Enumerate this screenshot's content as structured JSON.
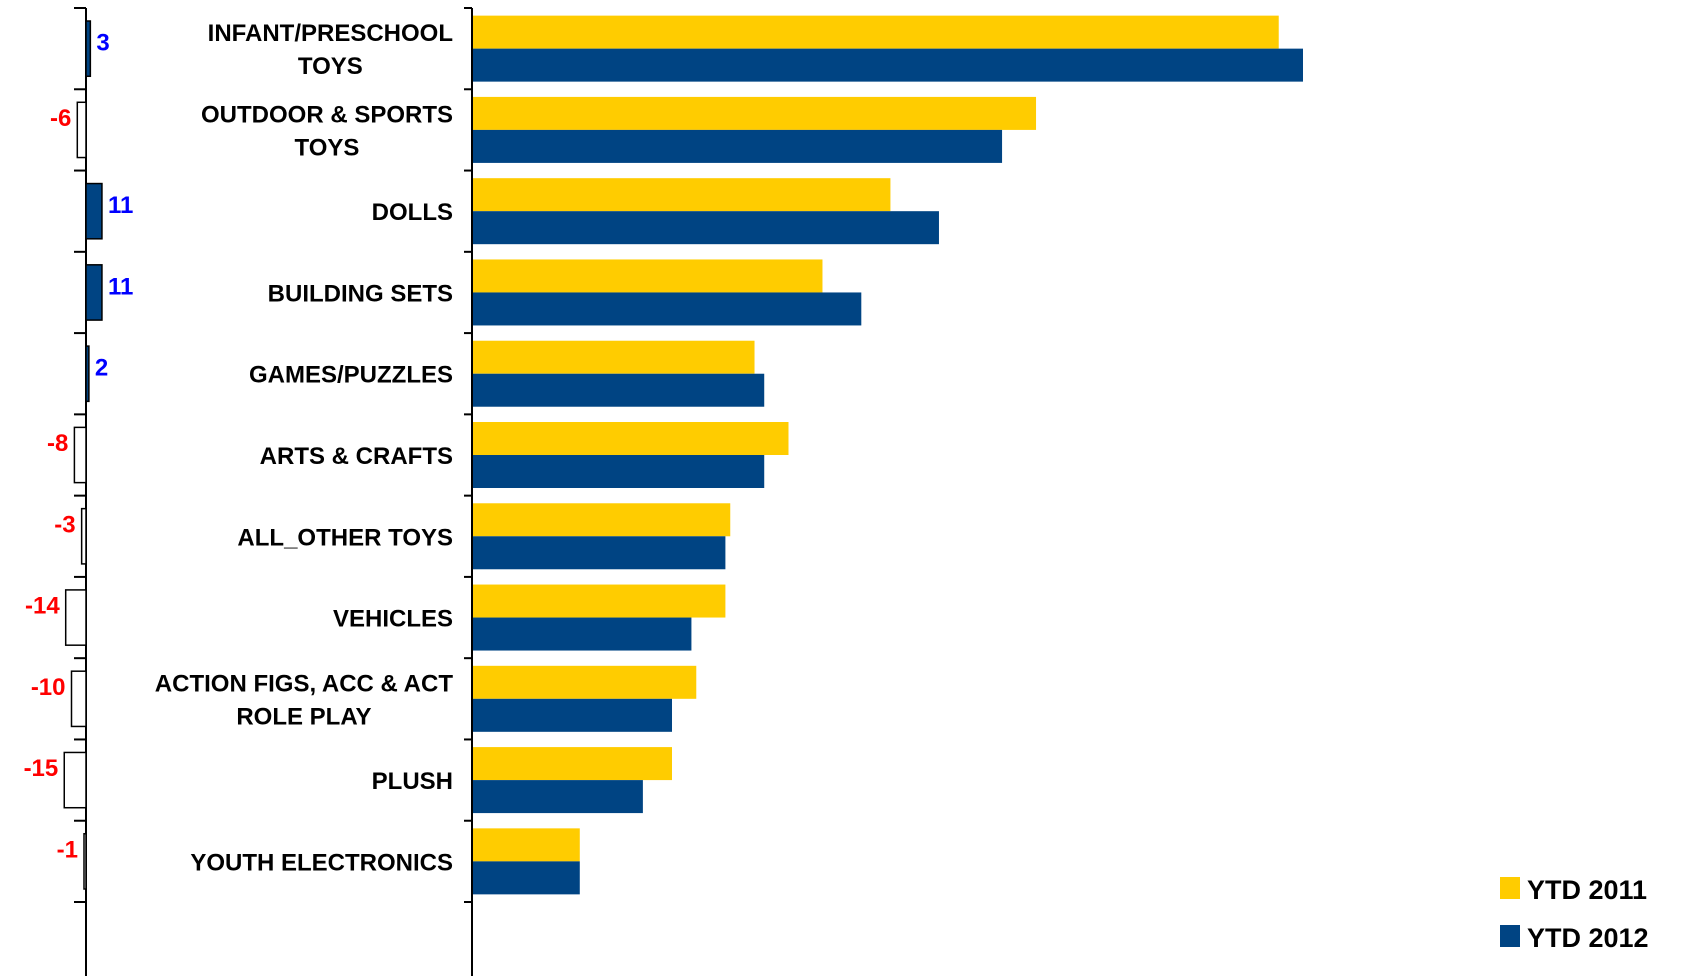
{
  "chart_data": {
    "type": "bar",
    "orientation": "horizontal",
    "categories": [
      [
        "INFANT/PRESCHOOL",
        "TOYS"
      ],
      [
        "OUTDOOR & SPORTS",
        "TOYS"
      ],
      [
        "DOLLS"
      ],
      [
        "BUILDING SETS"
      ],
      [
        "GAMES/PUZZLES"
      ],
      [
        "ARTS & CRAFTS"
      ],
      [
        "ALL_OTHER TOYS"
      ],
      [
        "VEHICLES"
      ],
      [
        "ACTION FIGS, ACC & ACT",
        "ROLE PLAY"
      ],
      [
        "PLUSH"
      ],
      [
        "YOUTH ELECTRONICS"
      ]
    ],
    "series": [
      {
        "name": "YTD 2011",
        "color": "#FFCC00",
        "values": [
          83,
          58,
          43,
          36,
          29,
          32.5,
          26.5,
          26,
          23,
          20.5,
          11
        ]
      },
      {
        "name": "YTD 2012",
        "color": "#004483",
        "values": [
          85.5,
          54.5,
          48,
          40,
          30,
          30,
          26,
          22.5,
          20.5,
          17.5,
          11
        ]
      }
    ],
    "xlim": [
      0,
      120
    ],
    "pct_change": {
      "values": [
        3,
        -6,
        11,
        11,
        2,
        -8,
        -3,
        -14,
        -10,
        -15,
        -1
      ],
      "labels": [
        "3",
        "-6",
        "11",
        "11",
        "2",
        "-8",
        "-3",
        "-14",
        "-10",
        "-15",
        "-1"
      ],
      "positive_color": "#0000FF",
      "negative_color": "#FF0000",
      "positive_fill": "#004483",
      "negative_fill": "#FFFFFF"
    },
    "legend_position": "bottom-right",
    "grid": false
  }
}
